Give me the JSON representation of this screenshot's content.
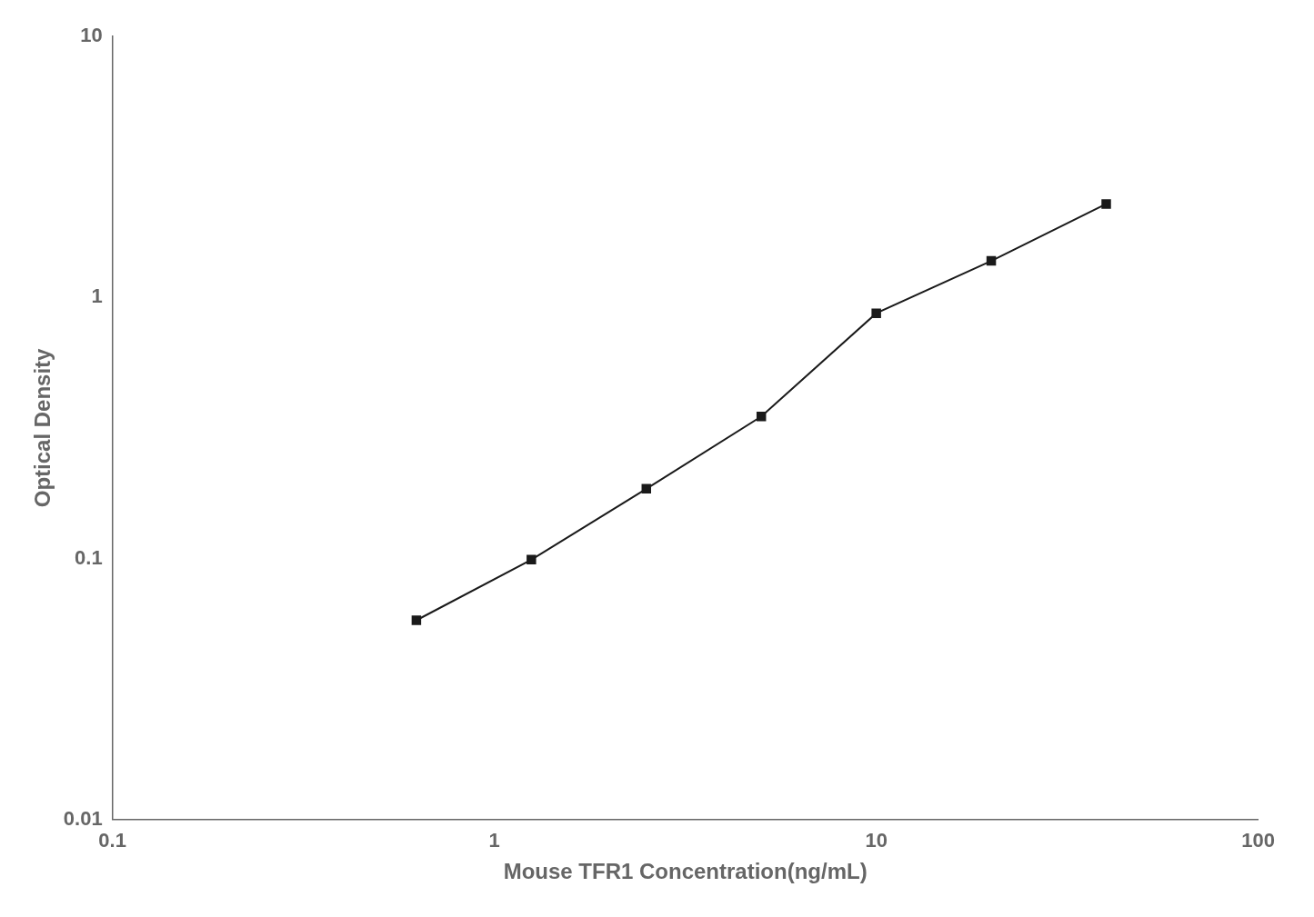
{
  "chart_data": {
    "type": "line",
    "x": [
      0.625,
      1.25,
      2.5,
      5.0,
      10.0,
      20.0,
      40.0
    ],
    "values": [
      0.058,
      0.099,
      0.185,
      0.35,
      0.87,
      1.38,
      2.28
    ],
    "xlabel": "Mouse TFR1 Concentration(ng/mL)",
    "ylabel": "Optical Density",
    "xlim": [
      0.1,
      100
    ],
    "ylim": [
      0.01,
      10
    ],
    "xticks": [
      0.1,
      1,
      10,
      100
    ],
    "yticks": [
      0.01,
      0.1,
      1,
      10
    ],
    "log": true,
    "grid": false,
    "color": "#1a1a1a",
    "marker": "square"
  }
}
